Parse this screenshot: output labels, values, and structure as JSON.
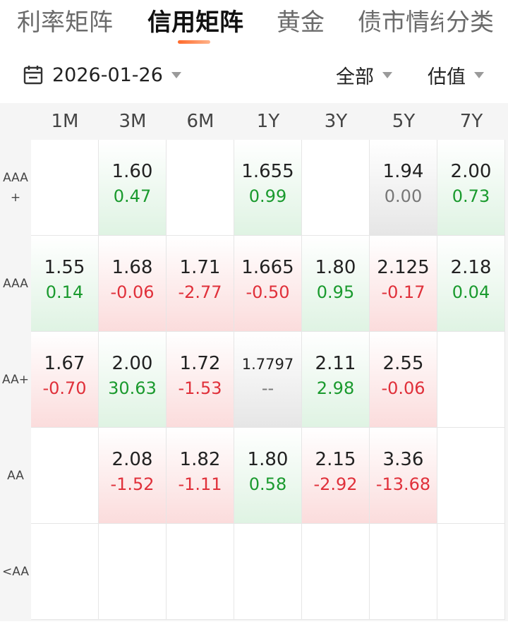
{
  "tabs": [
    {
      "label": "利率矩阵",
      "active": false
    },
    {
      "label": "信用矩阵",
      "active": true
    },
    {
      "label": "黄金",
      "active": false
    },
    {
      "label": "债市情绪",
      "active": false
    },
    {
      "label": "分类",
      "active": false
    }
  ],
  "filter": {
    "date": "2026-01-26",
    "scope": "全部",
    "metric": "估值"
  },
  "matrix": {
    "columns": [
      "1M",
      "3M",
      "6M",
      "1Y",
      "3Y",
      "5Y",
      "7Y"
    ],
    "rows": [
      {
        "label": "AAA\n+",
        "cells": [
          null,
          {
            "value": "1.60",
            "change": "0.47",
            "dir": "up"
          },
          null,
          {
            "value": "1.655",
            "change": "0.99",
            "dir": "up"
          },
          null,
          {
            "value": "1.94",
            "change": "0.00",
            "dir": "flat"
          },
          {
            "value": "2.00",
            "change": "0.73",
            "dir": "up"
          }
        ]
      },
      {
        "label": "AAA",
        "cells": [
          {
            "value": "1.55",
            "change": "0.14",
            "dir": "up"
          },
          {
            "value": "1.68",
            "change": "-0.06",
            "dir": "down"
          },
          {
            "value": "1.71",
            "change": "-2.77",
            "dir": "down"
          },
          {
            "value": "1.665",
            "change": "-0.50",
            "dir": "down"
          },
          {
            "value": "1.80",
            "change": "0.95",
            "dir": "up"
          },
          {
            "value": "2.125",
            "change": "-0.17",
            "dir": "down"
          },
          {
            "value": "2.18",
            "change": "0.04",
            "dir": "up"
          }
        ]
      },
      {
        "label": "AA+",
        "cells": [
          {
            "value": "1.67",
            "change": "-0.70",
            "dir": "down"
          },
          {
            "value": "2.00",
            "change": "30.63",
            "dir": "up"
          },
          {
            "value": "1.72",
            "change": "-1.53",
            "dir": "down"
          },
          {
            "value": "1.7797",
            "change": "--",
            "dir": "flat"
          },
          {
            "value": "2.11",
            "change": "2.98",
            "dir": "up"
          },
          {
            "value": "2.55",
            "change": "-0.06",
            "dir": "down"
          },
          null
        ]
      },
      {
        "label": "AA",
        "cells": [
          null,
          {
            "value": "2.08",
            "change": "-1.52",
            "dir": "down"
          },
          {
            "value": "1.82",
            "change": "-1.11",
            "dir": "down"
          },
          {
            "value": "1.80",
            "change": "0.58",
            "dir": "up"
          },
          {
            "value": "2.15",
            "change": "-2.92",
            "dir": "down"
          },
          {
            "value": "3.36",
            "change": "-13.68",
            "dir": "down"
          },
          null
        ]
      },
      {
        "label": "<AA",
        "cells": [
          null,
          null,
          null,
          null,
          null,
          null,
          null
        ]
      }
    ]
  },
  "colors": {
    "up": "#1a9a2e",
    "down": "#e0303a",
    "accent": "#ff6a2b"
  }
}
